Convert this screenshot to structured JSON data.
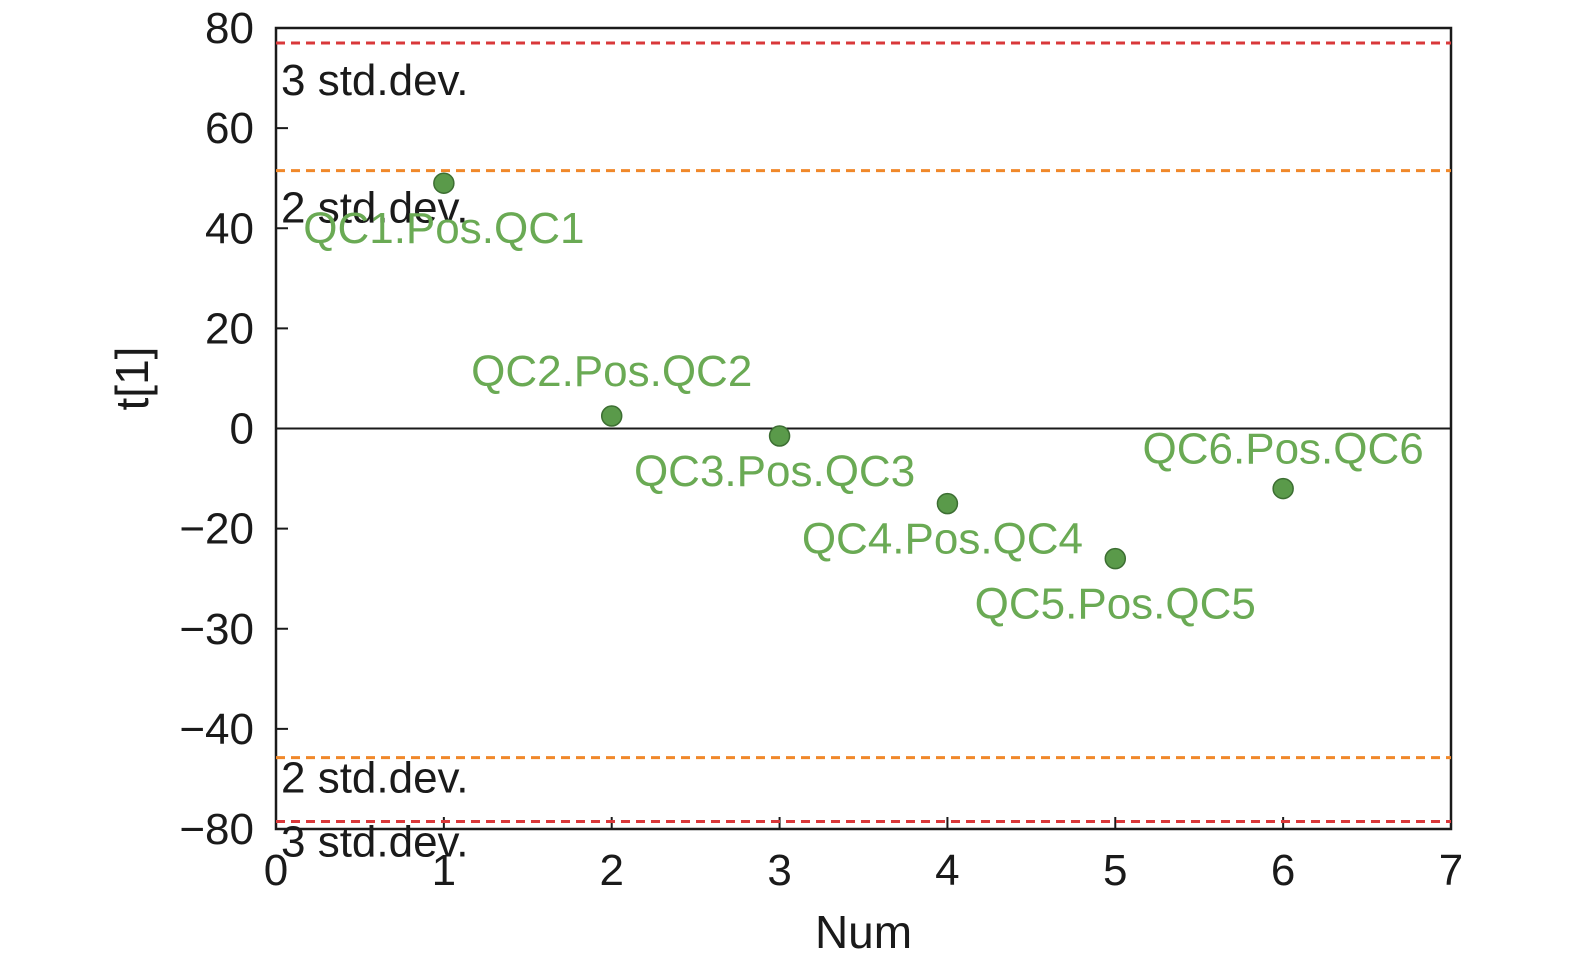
{
  "chart_data": {
    "type": "scatter",
    "xlabel": "Num",
    "ylabel": "t[1]",
    "xlim": [
      0,
      7
    ],
    "x_ticks": [
      0,
      1,
      2,
      3,
      4,
      5,
      6,
      7
    ],
    "x_tick_labels": [
      "0",
      "1",
      "2",
      "3",
      "4",
      "5",
      "6",
      "7"
    ],
    "ylim": [
      -80,
      80
    ],
    "y_ticks": [
      80,
      60,
      40,
      20,
      0,
      -20,
      -30,
      -40,
      -80
    ],
    "y_tick_labels": [
      "80",
      "60",
      "40",
      "20",
      "0",
      "−20",
      "−30",
      "−40",
      "−80"
    ],
    "points": [
      {
        "x": 1,
        "y": 49,
        "label": "QC1.Pos.QC1"
      },
      {
        "x": 2,
        "y": 2.5,
        "label": "QC2.Pos.QC2"
      },
      {
        "x": 3,
        "y": -1.5,
        "label": "QC3.Pos.QC3"
      },
      {
        "x": 4,
        "y": -15,
        "label": "QC4.Pos.QC4"
      },
      {
        "x": 5,
        "y": -23,
        "label": "QC5.Pos.QC5"
      },
      {
        "x": 6,
        "y": -12,
        "label": "QC6.Pos.QC6"
      }
    ],
    "reference_lines": [
      {
        "y": 77,
        "label": "3 std.dev.",
        "color": "#d9383a"
      },
      {
        "y": 51.5,
        "label": "2 std.dev.",
        "color": "#f0882a"
      },
      {
        "y": -51.5,
        "label": "2 std.dev.",
        "color": "#f0882a"
      },
      {
        "y": -77,
        "label": "3 std.dev.",
        "color": "#d9383a"
      }
    ],
    "zero_line": true,
    "grid": false,
    "point_color": "#5a9a4a",
    "label_color": "#6aaa54"
  }
}
